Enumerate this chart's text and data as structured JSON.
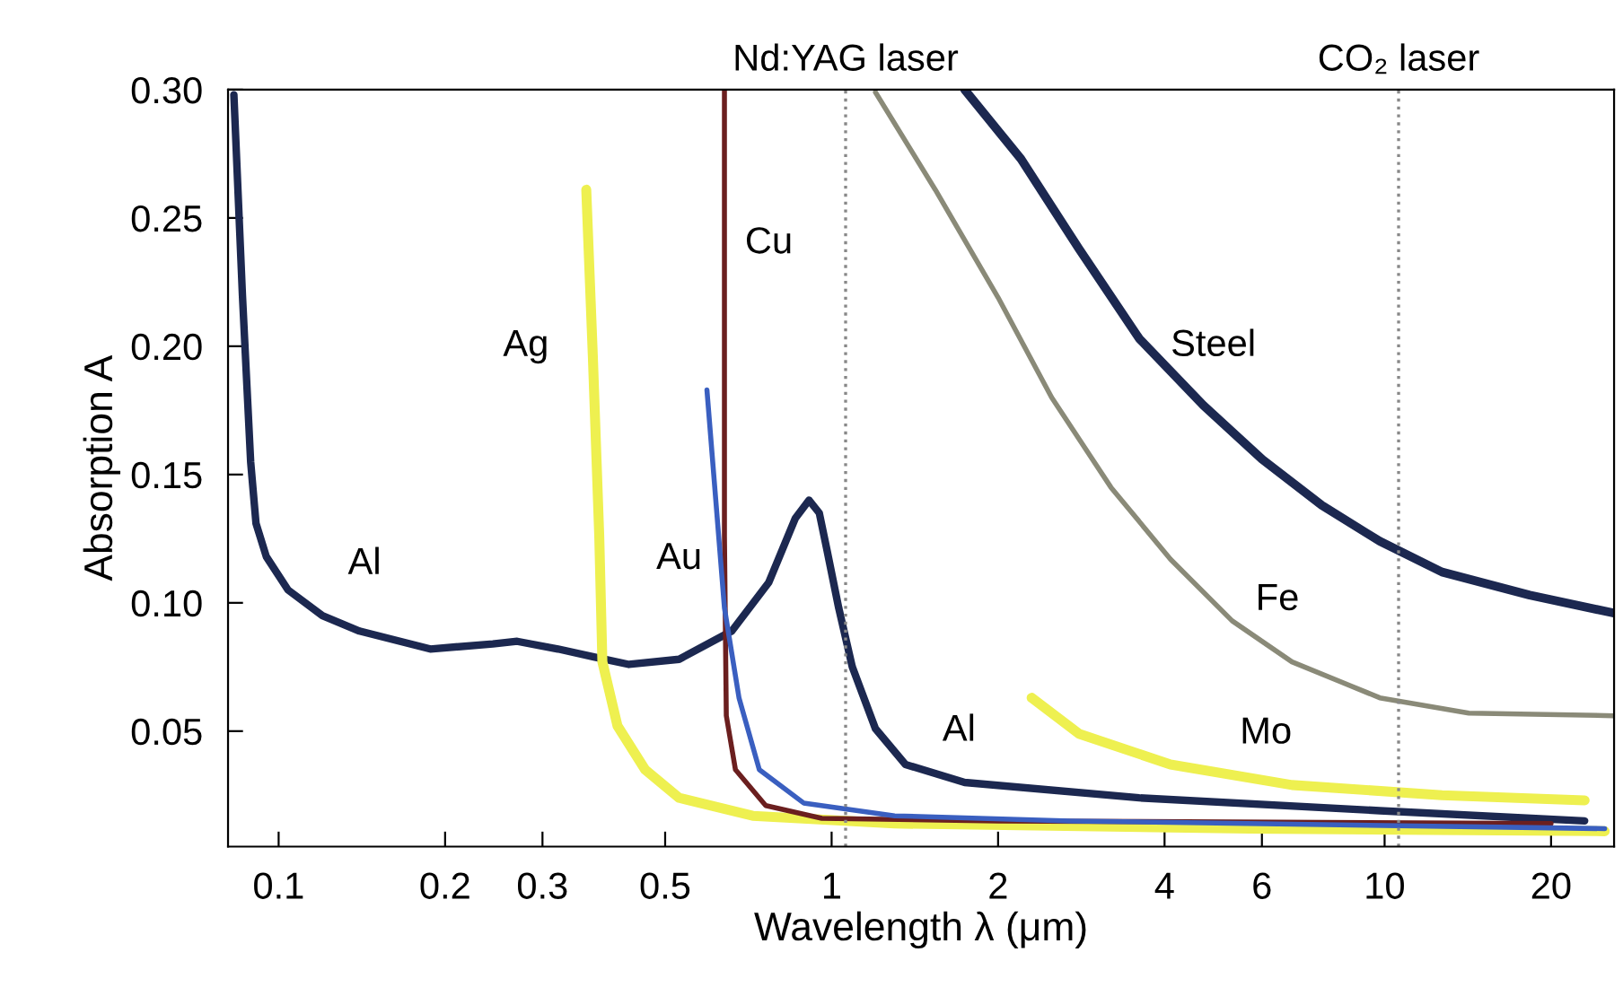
{
  "chart_data": {
    "type": "line",
    "xlabel": "Wavelength λ (μm)",
    "ylabel": "Absorption A",
    "log": "x",
    "xlim": [
      0.081,
      26
    ],
    "ylim": [
      0.005,
      0.3
    ],
    "xticks": [
      0.1,
      0.2,
      0.3,
      0.5,
      1,
      2,
      4,
      6,
      10,
      20
    ],
    "yticks": [
      {
        "value": 0.05,
        "label": "0.05"
      },
      {
        "value": 0.1,
        "label": "0.10"
      },
      {
        "value": 0.15,
        "label": "0.15"
      },
      {
        "value": 0.2,
        "label": "0.20"
      },
      {
        "value": 0.25,
        "label": "0.25"
      },
      {
        "value": 0.3,
        "label": "0.30"
      }
    ],
    "grid": false,
    "legend": false,
    "marker": "none",
    "line_style": "solid",
    "series": [
      {
        "name": "Al",
        "color": "#1c2850",
        "x": [
          0.083,
          0.086,
          0.089,
          0.091,
          0.095,
          0.104,
          0.12,
          0.14,
          0.188,
          0.244,
          0.27,
          0.32,
          0.37,
          0.43,
          0.53,
          0.66,
          0.77,
          0.86,
          0.91,
          0.95,
          0.98,
          1.03,
          1.09,
          1.2,
          1.36,
          1.74,
          3.6,
          9.8,
          23
        ],
        "values": [
          0.298,
          0.22,
          0.155,
          0.131,
          0.118,
          0.105,
          0.095,
          0.089,
          0.082,
          0.084,
          0.085,
          0.082,
          0.079,
          0.076,
          0.078,
          0.089,
          0.108,
          0.133,
          0.14,
          0.135,
          0.121,
          0.098,
          0.075,
          0.051,
          0.037,
          0.03,
          0.024,
          0.019,
          0.015
        ]
      },
      {
        "name": "Ag",
        "color": "#eef050",
        "x": [
          0.36,
          0.37,
          0.38,
          0.385,
          0.41,
          0.46,
          0.53,
          0.72,
          1.3,
          5.7,
          25
        ],
        "values": [
          0.261,
          0.196,
          0.126,
          0.077,
          0.052,
          0.035,
          0.024,
          0.017,
          0.014,
          0.012,
          0.011
        ]
      },
      {
        "name": "Cu",
        "color": "#6b1f1f",
        "x": [
          0.64,
          0.64,
          0.645,
          0.67,
          0.76,
          0.96,
          2.0,
          20
        ],
        "values": [
          0.3,
          0.126,
          0.056,
          0.035,
          0.021,
          0.016,
          0.015,
          0.014
        ]
      },
      {
        "name": "Au",
        "color": "#3a5fc0",
        "x": [
          0.595,
          0.64,
          0.68,
          0.74,
          0.89,
          1.3,
          2.7,
          25
        ],
        "values": [
          0.183,
          0.098,
          0.063,
          0.035,
          0.022,
          0.017,
          0.015,
          0.012
        ]
      },
      {
        "name": "Steel",
        "color": "#1c2850",
        "x": [
          1.74,
          2.2,
          2.8,
          3.6,
          4.7,
          6.0,
          7.7,
          9.8,
          12.7,
          18.3,
          26
        ],
        "values": [
          0.3,
          0.273,
          0.238,
          0.203,
          0.177,
          0.156,
          0.138,
          0.124,
          0.112,
          0.103,
          0.096
        ]
      },
      {
        "name": "Fe",
        "color": "#8a8a78",
        "x": [
          1.2,
          1.54,
          2.0,
          2.5,
          3.2,
          4.1,
          5.3,
          6.8,
          9.8,
          14.2,
          26
        ],
        "values": [
          0.299,
          0.261,
          0.219,
          0.18,
          0.145,
          0.117,
          0.093,
          0.077,
          0.063,
          0.057,
          0.056
        ]
      },
      {
        "name": "Mo",
        "color": "#eef050",
        "x": [
          2.3,
          2.8,
          4.1,
          6.8,
          12.7,
          23
        ],
        "values": [
          0.063,
          0.049,
          0.037,
          0.029,
          0.025,
          0.023
        ]
      }
    ],
    "ref_lines": [
      {
        "axis": "x",
        "value": 1.06,
        "label": "Nd:YAG laser",
        "color": "#888888",
        "line_style": "dotted"
      },
      {
        "axis": "x",
        "value": 10.6,
        "label": "CO₂ laser",
        "color": "#888888",
        "line_style": "dotted"
      }
    ]
  }
}
